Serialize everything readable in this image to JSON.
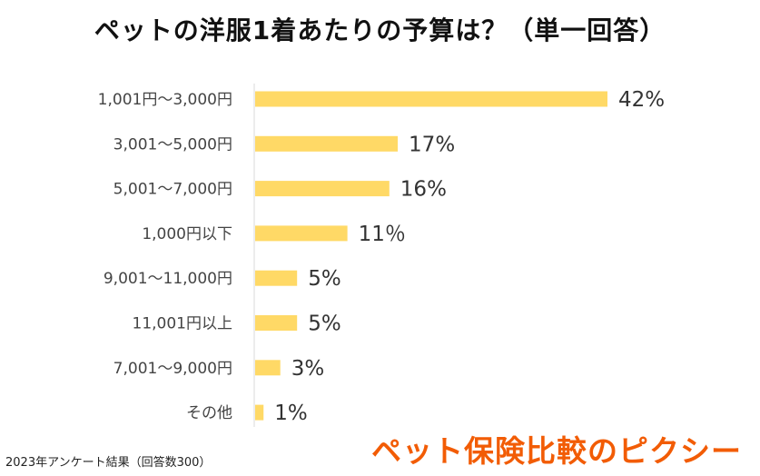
{
  "chart_data": {
    "type": "bar",
    "orientation": "horizontal",
    "title": "ペットの洋服1着あたりの予算は？（単一回答）",
    "categories": [
      "1,001円〜3,000円",
      "3,001〜5,000円",
      "5,001〜7,000円",
      "1,000円以下",
      "9,001〜11,000円",
      "11,001円以上",
      "7,001〜9,000円",
      "その他"
    ],
    "values": [
      42,
      17,
      16,
      11,
      5,
      5,
      3,
      1
    ],
    "value_labels": [
      "42%",
      "17%",
      "16%",
      "11％",
      "5%",
      "5%",
      "3%",
      "1%"
    ],
    "unit": "%",
    "xlim": [
      0,
      42
    ],
    "bar_color": "#FFD966"
  },
  "footnote": "2023年アンケート結果（回答数300）",
  "brand": "ペット保険比較のピクシー",
  "colors": {
    "bar": "#FFD966",
    "brand": "#F25C05",
    "axis": "#D9D9D9"
  }
}
